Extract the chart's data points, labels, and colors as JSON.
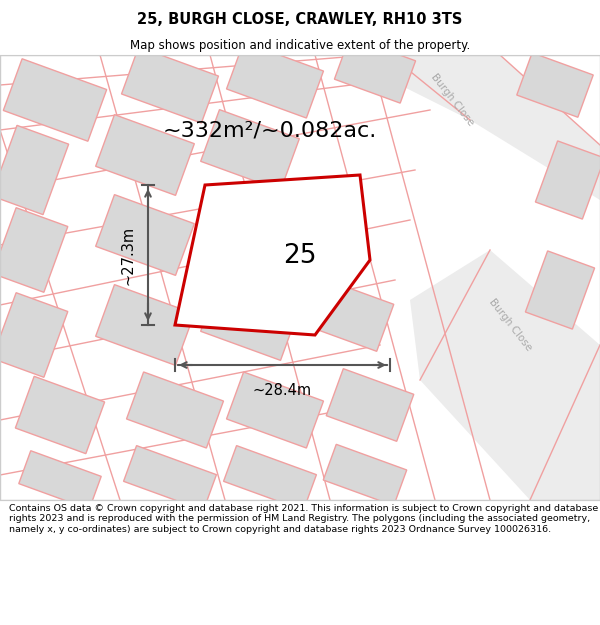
{
  "title": "25, BURGH CLOSE, CRAWLEY, RH10 3TS",
  "subtitle": "Map shows position and indicative extent of the property.",
  "area_text": "~332m²/~0.082ac.",
  "plot_number": "25",
  "dim_width": "~28.4m",
  "dim_height": "~27.3m",
  "footer": "Contains OS data © Crown copyright and database right 2021. This information is subject to Crown copyright and database rights 2023 and is reproduced with the permission of HM Land Registry. The polygons (including the associated geometry, namely x, y co-ordinates) are subject to Crown copyright and database rights 2023 Ordnance Survey 100026316.",
  "map_bg": "#f7f7f7",
  "building_color": "#d8d8d8",
  "road_line_color": "#f0a0a0",
  "road_fill_color": "#efefef",
  "plot_outline_color": "#cc0000",
  "dim_color": "#555555",
  "title_color": "#000000",
  "footer_color": "#000000",
  "street_label_color": "#aaaaaa",
  "map_border_color": "#cccccc"
}
